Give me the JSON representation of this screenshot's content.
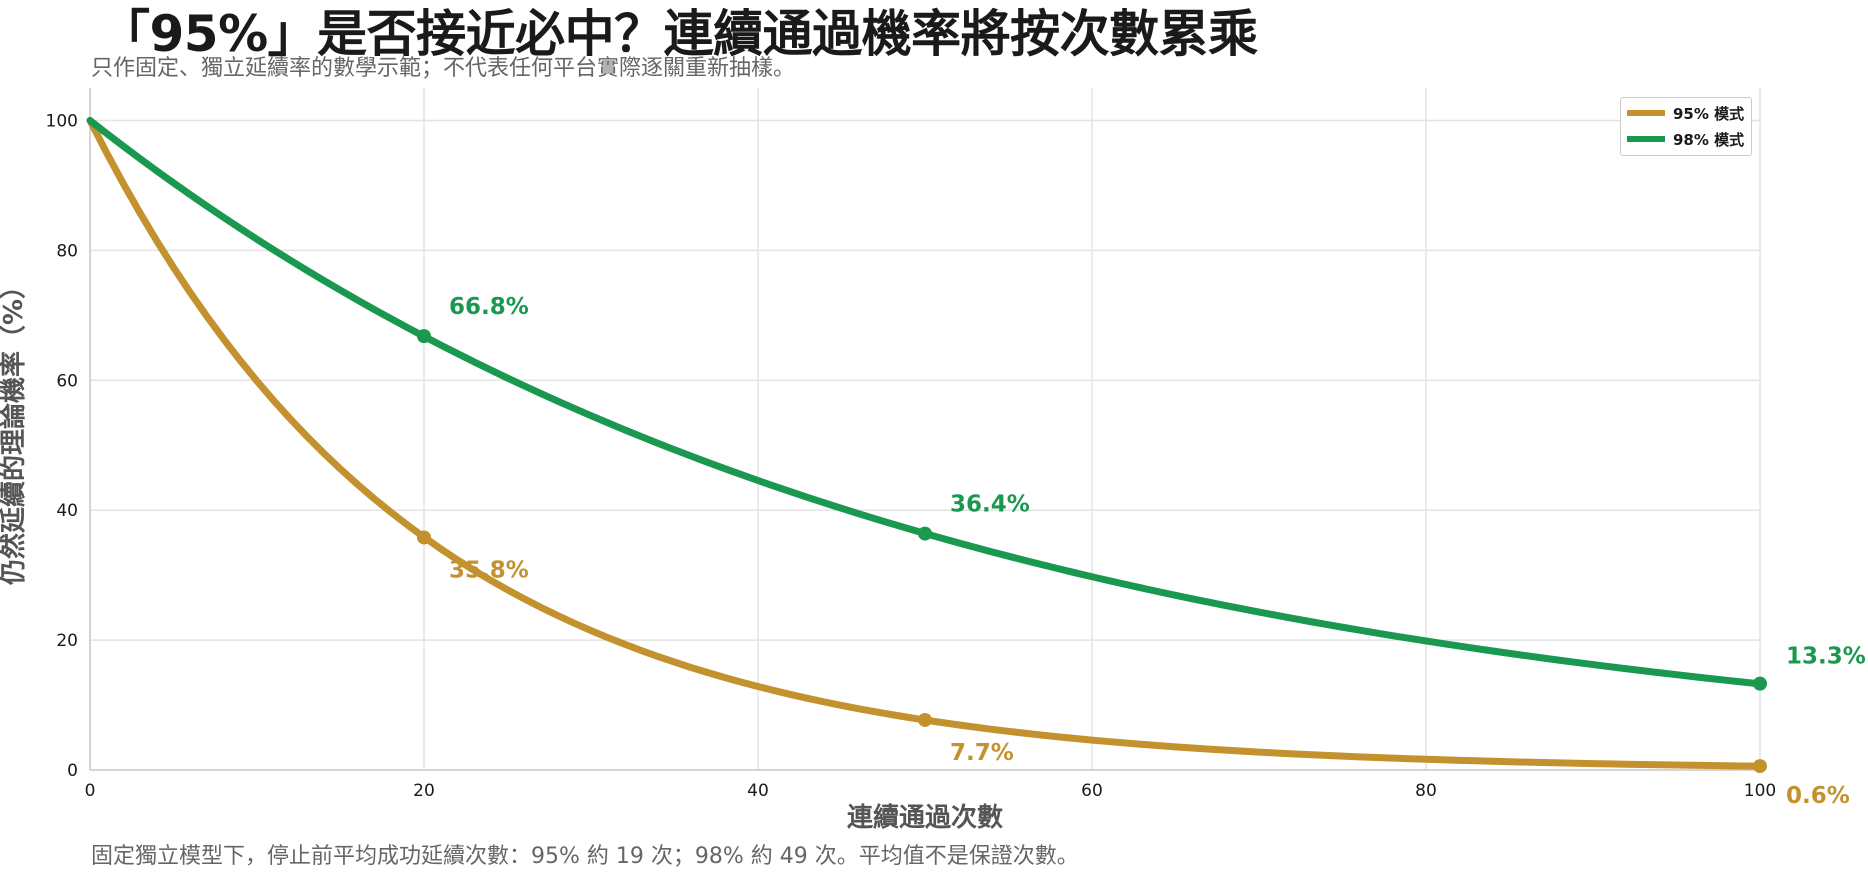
{
  "title": "「95%」是否接近必中？連續通過機率將按次數累乘",
  "subtitle": "只作固定、獨立延續率的數學示範；不代表任何平台實際逐關重新抽樣。",
  "footnote": "固定獨立模型下，停止前平均成功延續次數：95% 約 19 次；98% 約 49 次。平均值不是保證次數。",
  "chart_data": {
    "type": "line",
    "title": "「95%」是否接近必中？連續通過機率將按次數累乘",
    "subtitle": "只作固定、獨立延續率的數學示範；不代表任何平台實際逐關重新抽樣。",
    "xlabel": "連續通過次數",
    "ylabel": "仍然延續的理論機率（%）",
    "xlim": [
      0,
      100
    ],
    "ylim": [
      0,
      105
    ],
    "xticks": [
      "0",
      "20",
      "40",
      "60",
      "80",
      "100"
    ],
    "yticks": [
      "0",
      "20",
      "40",
      "60",
      "80",
      "100"
    ],
    "grid": true,
    "legend_position": "top-right",
    "series": [
      {
        "name": "95% 模式",
        "color": "#c3922e",
        "rate": 0.95,
        "x": [
          0,
          10,
          20,
          30,
          40,
          50,
          60,
          70,
          80,
          90,
          100
        ],
        "y": [
          100,
          59.9,
          35.8,
          21.5,
          12.9,
          7.7,
          4.6,
          2.8,
          1.7,
          1.0,
          0.6
        ],
        "marked_points": [
          {
            "x": 20,
            "y": 35.8,
            "label": "35.8%"
          },
          {
            "x": 50,
            "y": 7.7,
            "label": "7.7%"
          },
          {
            "x": 100,
            "y": 0.6,
            "label": "0.6%"
          }
        ]
      },
      {
        "name": "98% 模式",
        "color": "#1a9850",
        "rate": 0.98,
        "x": [
          0,
          10,
          20,
          30,
          40,
          50,
          60,
          70,
          80,
          90,
          100
        ],
        "y": [
          100,
          81.7,
          66.8,
          54.5,
          44.6,
          36.4,
          29.8,
          24.3,
          19.9,
          16.2,
          13.3
        ],
        "marked_points": [
          {
            "x": 20,
            "y": 66.8,
            "label": "66.8%"
          },
          {
            "x": 50,
            "y": 36.4,
            "label": "36.4%"
          },
          {
            "x": 100,
            "y": 13.3,
            "label": "13.3%"
          }
        ]
      }
    ]
  }
}
